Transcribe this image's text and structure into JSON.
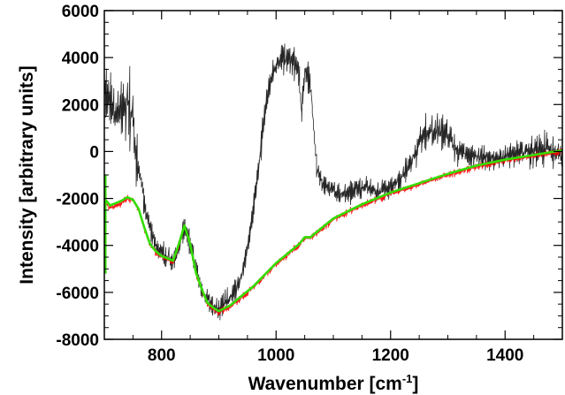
{
  "chart_data": {
    "type": "line",
    "title": "",
    "xlabel": "Wavenumber [cm",
    "xlabel_sup": "-1",
    "xlabel_suffix": "]",
    "ylabel": "Intensity [arbitrary units]",
    "xlim": [
      700,
      1500
    ],
    "ylim": [
      -8000,
      6000
    ],
    "x_ticks": [
      800,
      1000,
      1200,
      1400
    ],
    "y_ticks": [
      6000,
      4000,
      2000,
      0,
      -2000,
      -4000,
      -6000,
      -8000
    ],
    "x_tick_labels": [
      "800",
      "1000",
      "1200",
      "1400"
    ],
    "y_tick_labels": [
      "6000",
      "4000",
      "2000",
      "0",
      "-2000",
      "-4000",
      "-6000",
      "-8000"
    ],
    "grid": false,
    "legend": "none",
    "series": [
      {
        "color": "#000000",
        "style": "noisy-raw",
        "x": [
          700,
          710,
          720,
          730,
          740,
          750,
          760,
          770,
          780,
          790,
          800,
          810,
          820,
          830,
          840,
          850,
          860,
          870,
          880,
          890,
          900,
          910,
          920,
          930,
          940,
          950,
          960,
          970,
          980,
          990,
          1000,
          1010,
          1020,
          1030,
          1040,
          1045,
          1050,
          1060,
          1070,
          1080,
          1090,
          1100,
          1120,
          1140,
          1160,
          1180,
          1200,
          1220,
          1240,
          1260,
          1280,
          1300,
          1310,
          1320,
          1340,
          1360,
          1380,
          1400,
          1420,
          1440,
          1460,
          1480,
          1500
        ],
        "y": [
          2600,
          2300,
          1500,
          1700,
          2200,
          1400,
          -700,
          -2300,
          -3300,
          -4000,
          -4300,
          -4500,
          -4700,
          -4100,
          -3200,
          -3900,
          -5000,
          -5800,
          -6300,
          -6600,
          -6700,
          -6500,
          -6200,
          -5900,
          -5300,
          -4200,
          -2500,
          -500,
          1500,
          3000,
          3700,
          3900,
          3900,
          3700,
          3500,
          1500,
          3400,
          3000,
          -600,
          -1400,
          -1500,
          -1700,
          -1800,
          -1600,
          -1500,
          -1700,
          -1600,
          -1100,
          -200,
          800,
          900,
          700,
          200,
          0,
          -200,
          -200,
          -300,
          -200,
          -100,
          0,
          100,
          100,
          -200
        ]
      },
      {
        "color": "#ff0000",
        "style": "noisy",
        "x": [
          700,
          710,
          720,
          730,
          740,
          750,
          760,
          770,
          780,
          790,
          800,
          810,
          820,
          830,
          840,
          850,
          860,
          870,
          880,
          890,
          900,
          920,
          940,
          960,
          980,
          1000,
          1020,
          1040,
          1050,
          1060,
          1080,
          1100,
          1150,
          1200,
          1250,
          1300,
          1350,
          1400,
          1450,
          1500
        ],
        "y": [
          -2100,
          -2400,
          -2300,
          -2200,
          -2000,
          -2100,
          -2500,
          -3300,
          -4000,
          -4300,
          -4500,
          -4600,
          -4700,
          -4000,
          -3200,
          -4000,
          -5200,
          -5900,
          -6500,
          -6700,
          -6850,
          -6600,
          -6200,
          -5800,
          -5300,
          -4800,
          -4400,
          -4000,
          -3700,
          -3700,
          -3300,
          -2900,
          -2300,
          -1800,
          -1400,
          -1000,
          -650,
          -400,
          -200,
          0
        ]
      },
      {
        "color": "#33dd00",
        "style": "smooth",
        "x": [
          700,
          710,
          720,
          730,
          740,
          750,
          760,
          770,
          780,
          790,
          800,
          810,
          820,
          830,
          840,
          850,
          860,
          870,
          880,
          890,
          900,
          920,
          940,
          960,
          980,
          1000,
          1020,
          1040,
          1050,
          1060,
          1080,
          1100,
          1150,
          1200,
          1250,
          1300,
          1350,
          1400,
          1450,
          1500
        ],
        "y": [
          -2000,
          -2300,
          -2200,
          -2100,
          -1950,
          -2050,
          -2450,
          -3250,
          -3950,
          -4250,
          -4450,
          -4550,
          -4650,
          -3950,
          -3150,
          -3950,
          -5150,
          -5850,
          -6450,
          -6650,
          -6800,
          -6550,
          -6150,
          -5750,
          -5250,
          -4750,
          -4350,
          -3950,
          -3650,
          -3650,
          -3250,
          -2850,
          -2250,
          -1750,
          -1350,
          -950,
          -600,
          -350,
          -150,
          50
        ]
      }
    ]
  }
}
